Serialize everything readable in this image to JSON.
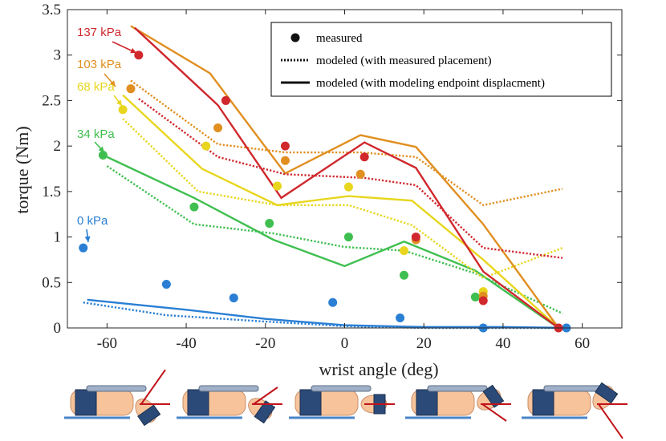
{
  "chart_data": {
    "type": "line",
    "xlabel": "wrist angle (deg)",
    "ylabel": "torque (Nm)",
    "xlim": [
      -70,
      70
    ],
    "ylim": [
      0,
      3.5
    ],
    "xticks": [
      -60,
      -40,
      -20,
      0,
      20,
      40,
      60
    ],
    "yticks": [
      0,
      0.5,
      1,
      1.5,
      2,
      2.5,
      3,
      3.5
    ],
    "xtick_labels": [
      "-60",
      "-40",
      "-20",
      "0",
      "20",
      "40",
      "60"
    ],
    "ytick_labels": [
      "0",
      "0.5",
      "1",
      "1.5",
      "2",
      "2.5",
      "3",
      "3.5"
    ],
    "legend_position": "top-right",
    "legend": [
      {
        "style": "marker",
        "label": "measured"
      },
      {
        "style": "dotted",
        "label": "modeled (with measured placement)"
      },
      {
        "style": "solid",
        "label": "modeled (with modeling endpoint displacment)"
      }
    ],
    "series": [
      {
        "name": "0 kPa",
        "color": "#2a7fd4",
        "measured": {
          "x": [
            -66,
            -45,
            -28,
            -3,
            14,
            35,
            56
          ],
          "y": [
            0.88,
            0.48,
            0.33,
            0.28,
            0.11,
            0,
            0
          ]
        },
        "modeled_measured_placement": {
          "x": [
            -66,
            -45,
            -20,
            0,
            20,
            40,
            56
          ],
          "y": [
            0.28,
            0.14,
            0.07,
            0.02,
            0,
            0,
            0
          ]
        },
        "modeled_endpoint": {
          "x": [
            -65,
            -40,
            -20,
            0,
            20,
            40,
            57
          ],
          "y": [
            0.31,
            0.2,
            0.1,
            0.03,
            0.01,
            0.01,
            0
          ]
        }
      },
      {
        "name": "34 kPa",
        "color": "#3fbf50",
        "measured": {
          "x": [
            -61,
            -38,
            -19,
            1,
            15,
            33
          ],
          "y": [
            1.9,
            1.33,
            1.15,
            1.0,
            0.58,
            0.34
          ]
        },
        "modeled_measured_placement": {
          "x": [
            -60,
            -38,
            -18,
            0,
            15,
            33,
            55
          ],
          "y": [
            1.78,
            1.14,
            1.04,
            0.89,
            0.85,
            0.6,
            0.16
          ]
        },
        "modeled_endpoint": {
          "x": [
            -60,
            -38,
            -18,
            0,
            15,
            33,
            54
          ],
          "y": [
            1.88,
            1.43,
            0.97,
            0.68,
            0.95,
            0.63,
            0
          ]
        }
      },
      {
        "name": "68 kPa",
        "color": "#e8d61e",
        "measured": {
          "x": [
            -56,
            -35,
            -17,
            1,
            15,
            35
          ],
          "y": [
            2.4,
            2.0,
            1.56,
            1.55,
            0.85,
            0.4
          ]
        },
        "modeled_measured_placement": {
          "x": [
            -56,
            -37,
            -17,
            1,
            17,
            35,
            55
          ],
          "y": [
            2.3,
            1.5,
            1.35,
            1.35,
            1.13,
            0.55,
            0.88
          ]
        },
        "modeled_endpoint": {
          "x": [
            -56,
            -36,
            -17,
            1,
            17,
            35,
            54
          ],
          "y": [
            2.56,
            1.75,
            1.35,
            1.45,
            1.4,
            0.75,
            0
          ]
        }
      },
      {
        "name": "103 kPa",
        "color": "#e08f20",
        "measured": {
          "x": [
            -54,
            -32,
            -15,
            4,
            18,
            35
          ],
          "y": [
            2.63,
            2.2,
            1.84,
            1.69,
            0.97,
            0.35
          ]
        },
        "modeled_measured_placement": {
          "x": [
            -54,
            -32,
            -15,
            4,
            18,
            35,
            55
          ],
          "y": [
            2.72,
            2.02,
            1.93,
            1.93,
            1.88,
            1.35,
            1.53
          ]
        },
        "modeled_endpoint": {
          "x": [
            -54,
            -34,
            -15,
            4,
            18,
            35,
            54
          ],
          "y": [
            3.32,
            2.8,
            1.7,
            2.12,
            1.99,
            1.14,
            0
          ]
        }
      },
      {
        "name": "137 kPa",
        "color": "#d0282d",
        "measured": {
          "x": [
            -52,
            -30,
            -15,
            5,
            18,
            35,
            54
          ],
          "y": [
            3.0,
            2.5,
            2.0,
            1.88,
            1.0,
            0.3,
            0
          ]
        },
        "modeled_measured_placement": {
          "x": [
            -52,
            -32,
            -15,
            5,
            18,
            35,
            55
          ],
          "y": [
            2.52,
            1.88,
            1.69,
            1.65,
            1.57,
            0.88,
            0.77
          ]
        },
        "modeled_endpoint": {
          "x": [
            -53,
            -32,
            -16,
            5,
            18,
            35,
            54
          ],
          "y": [
            3.3,
            2.45,
            1.43,
            2.04,
            1.76,
            0.62,
            0
          ]
        }
      }
    ]
  }
}
